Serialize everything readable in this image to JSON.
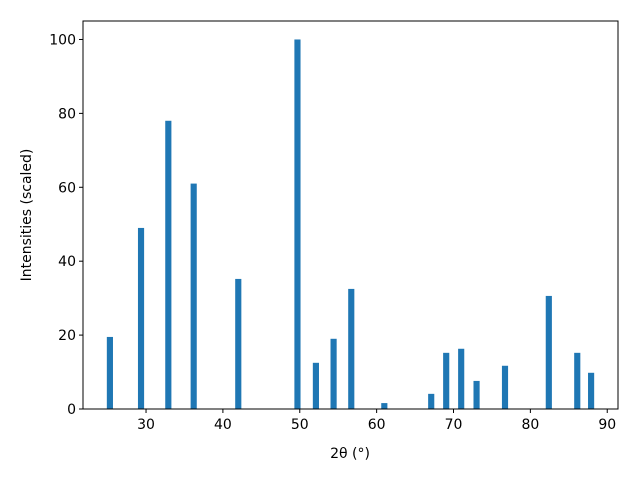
{
  "chart_data": {
    "type": "bar",
    "x": [
      25.3,
      29.35,
      32.9,
      36.2,
      42.0,
      49.7,
      52.1,
      54.4,
      56.7,
      61.0,
      67.1,
      69.05,
      71.0,
      73.0,
      76.7,
      82.4,
      86.1,
      87.9
    ],
    "values": [
      19.5,
      49.0,
      78.0,
      61.0,
      35.2,
      100,
      12.5,
      19.0,
      32.5,
      1.6,
      4.1,
      15.2,
      16.3,
      7.6,
      11.7,
      30.6,
      15.2,
      9.8
    ],
    "color": "#1f77b4",
    "bar_width": 0.8,
    "xlabel": "2θ (°)",
    "ylabel": "Intensities (scaled)",
    "xlim": [
      21.8,
      91.4
    ],
    "ylim": [
      0,
      105
    ],
    "xticks": [
      30,
      40,
      50,
      60,
      70,
      80,
      90
    ],
    "yticks": [
      0,
      20,
      40,
      60,
      80,
      100
    ]
  }
}
